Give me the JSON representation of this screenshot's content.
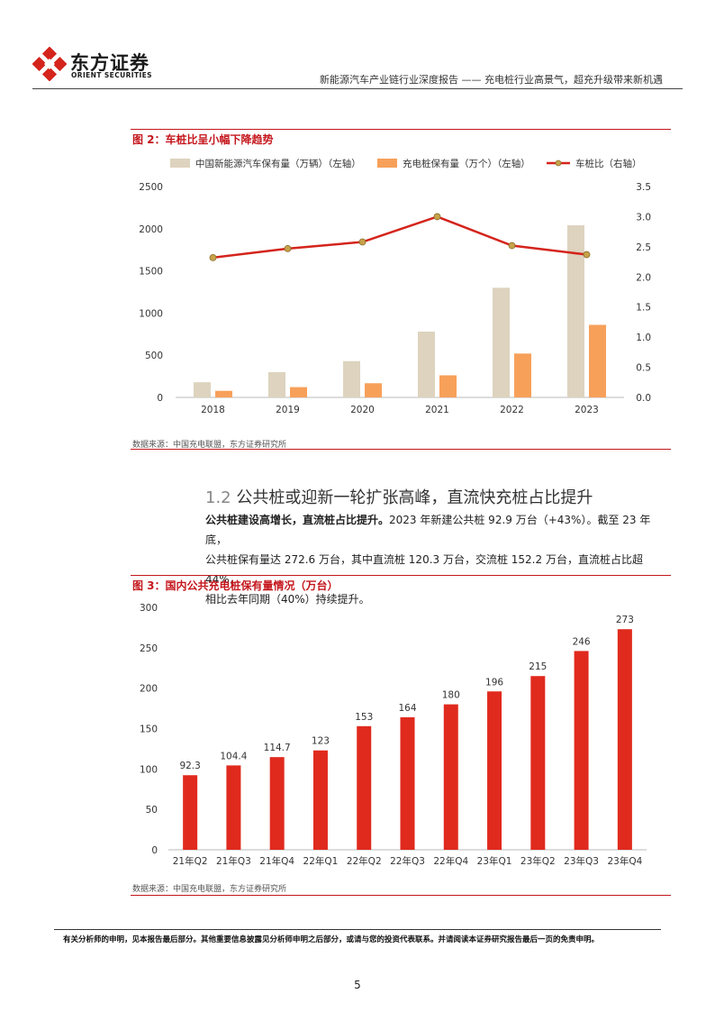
{
  "header": {
    "logo_cn": "东方证券",
    "logo_en": "ORIENT SECURITIES",
    "report_title": "新能源汽车产业链行业深度报告 —— 充电桩行业高景气，超充升级带来新机遇"
  },
  "figure2": {
    "title": "图 2：车桩比呈小幅下降趋势",
    "source": "数据来源：中国充电联盟，东方证券研究所",
    "chart_data": {
      "type": "bar",
      "categories": [
        "2018",
        "2019",
        "2020",
        "2021",
        "2022",
        "2023"
      ],
      "series": [
        {
          "name": "中国新能源汽车保有量（万辆）（左轴）",
          "type": "bar",
          "axis": "left",
          "color": "#ddd3be",
          "values": [
            180,
            300,
            430,
            780,
            1300,
            2040
          ]
        },
        {
          "name": "充电桩保有量（万个）（左轴）",
          "type": "bar",
          "axis": "left",
          "color": "#f7a05a",
          "values": [
            78,
            122,
            168,
            262,
            520,
            860
          ]
        },
        {
          "name": "车桩比（右轴）",
          "type": "line",
          "axis": "right",
          "color": "#d4241c",
          "values": [
            2.32,
            2.47,
            2.58,
            3.0,
            2.52,
            2.37
          ]
        }
      ],
      "y_left": {
        "min": 0,
        "max": 2500,
        "ticks": [
          "0",
          "500",
          "1000",
          "1500",
          "2000",
          "2500"
        ]
      },
      "y_right": {
        "min": 0,
        "max": 3.5,
        "ticks": [
          "0.0",
          "0.5",
          "1.0",
          "1.5",
          "2.0",
          "2.5",
          "3.0",
          "3.5"
        ]
      },
      "legend_position": "top",
      "grid": false
    }
  },
  "section": {
    "number": "1.2",
    "title": "公共桩或迎新一轮扩张高峰，直流快充桩占比提升",
    "lead_bold": "公共桩建设高增长，直流桩占比提升。",
    "line1_rest": "2023 年新建公共桩 92.9 万台（+43%）。截至 23 年底，",
    "line2": "公共桩保有量达 272.6 万台，其中直流桩 120.3 万台，交流桩 152.2 万台，直流桩占比超 44%，",
    "line3": "相比去年同期（40%）持续提升。"
  },
  "figure3": {
    "title": "图 3：国内公共充电桩保有量情况（万台）",
    "source": "数据来源：中国充电联盟，东方证券研究所",
    "chart_data": {
      "type": "bar",
      "categories": [
        "21年Q2",
        "21年Q3",
        "21年Q4",
        "22年Q1",
        "22年Q2",
        "22年Q3",
        "22年Q4",
        "23年Q1",
        "23年Q2",
        "23年Q3",
        "23年Q4"
      ],
      "values": [
        92.3,
        104.4,
        114.7,
        123,
        153,
        164,
        180,
        196,
        215,
        246,
        273
      ],
      "labels": [
        "92.3",
        "104.4",
        "114.7",
        "123",
        "153",
        "164",
        "180",
        "196",
        "215",
        "246",
        "273"
      ],
      "color": "#e02a1e",
      "y": {
        "min": 0,
        "max": 300,
        "ticks": [
          "0",
          "50",
          "100",
          "150",
          "200",
          "250",
          "300"
        ]
      },
      "grid": false
    }
  },
  "footer": {
    "disclaimer": "有关分析师的申明，见本报告最后部分。其他重要信息披露见分析师申明之后部分，或请与您的投资代表联系。并请阅读本证券研究报告最后一页的免责申明。",
    "page_number": "5"
  }
}
